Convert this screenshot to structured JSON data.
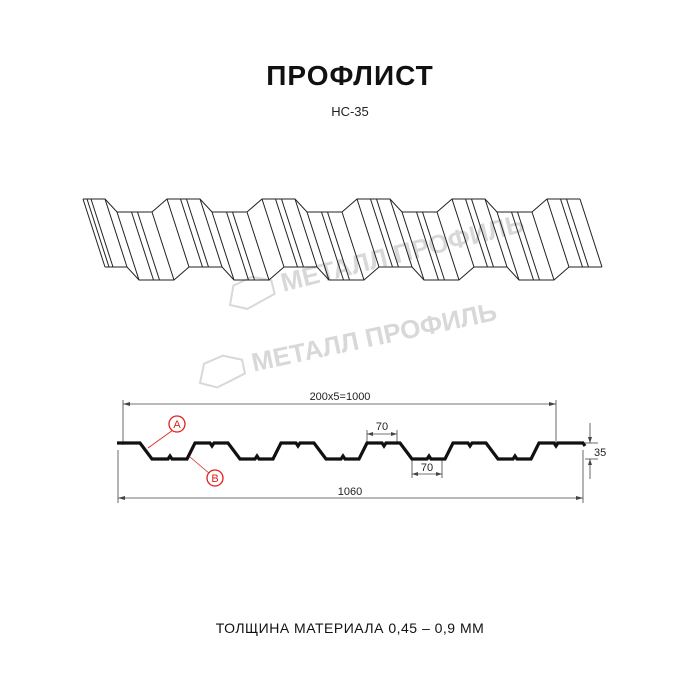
{
  "title": "ПРОФЛИСТ",
  "subtitle": "НС-35",
  "footer": "ТОЛЩИНА МАТЕРИАЛА 0,45 – 0,9 ММ",
  "watermark": "МЕТАЛЛ ПРОФИЛЬ",
  "dimensions": {
    "pitch_total": "200x5=1000",
    "overall_width": "1060",
    "height": "35",
    "top_flange": "70",
    "bottom_flange": "70"
  },
  "callouts": {
    "a": "A",
    "b": "B"
  },
  "colors": {
    "line": "#111111",
    "callout": "#e0201c",
    "watermark": "#d8d8d8"
  }
}
